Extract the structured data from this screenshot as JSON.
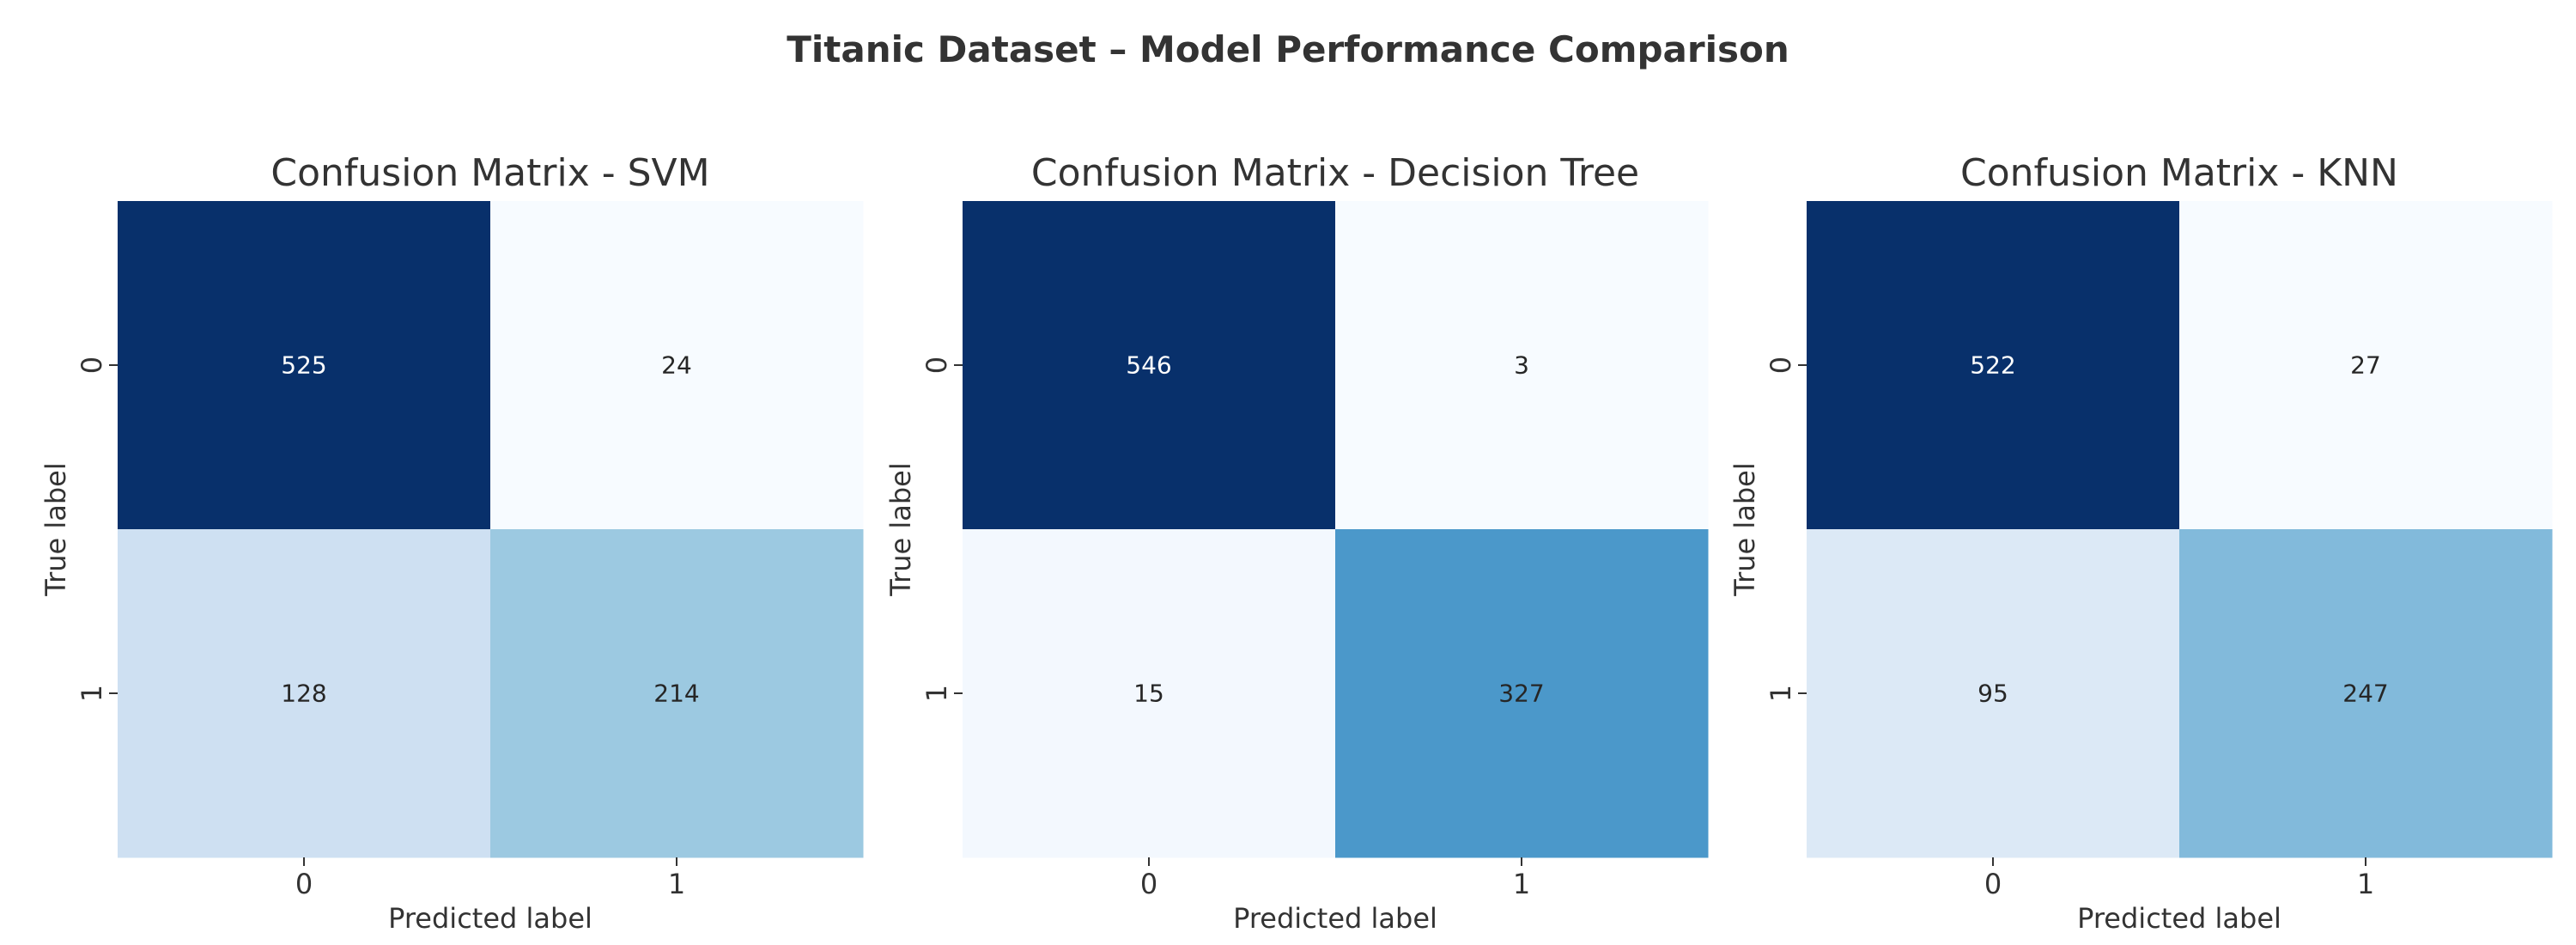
{
  "chart_data": {
    "type": "heatmap",
    "title": "Titanic Dataset – Model Performance Comparison",
    "colormap": "Blues",
    "colors": {
      "text_dark": "#333333",
      "cell_text_dark": "#262626",
      "cell_text_light": "#ffffff"
    },
    "panels": [
      {
        "title": "Confusion Matrix - SVM",
        "xlabel": "Predicted label",
        "ylabel": "True label",
        "x_categories": [
          "0",
          "1"
        ],
        "y_categories": [
          "0",
          "1"
        ],
        "values": [
          [
            525,
            24
          ],
          [
            128,
            214
          ]
        ]
      },
      {
        "title": "Confusion Matrix - Decision Tree",
        "xlabel": "Predicted label",
        "ylabel": "True label",
        "x_categories": [
          "0",
          "1"
        ],
        "y_categories": [
          "0",
          "1"
        ],
        "values": [
          [
            546,
            3
          ],
          [
            15,
            327
          ]
        ]
      },
      {
        "title": "Confusion Matrix - KNN",
        "xlabel": "Predicted label",
        "ylabel": "True label",
        "x_categories": [
          "0",
          "1"
        ],
        "y_categories": [
          "0",
          "1"
        ],
        "values": [
          [
            522,
            27
          ],
          [
            95,
            247
          ]
        ]
      }
    ]
  }
}
